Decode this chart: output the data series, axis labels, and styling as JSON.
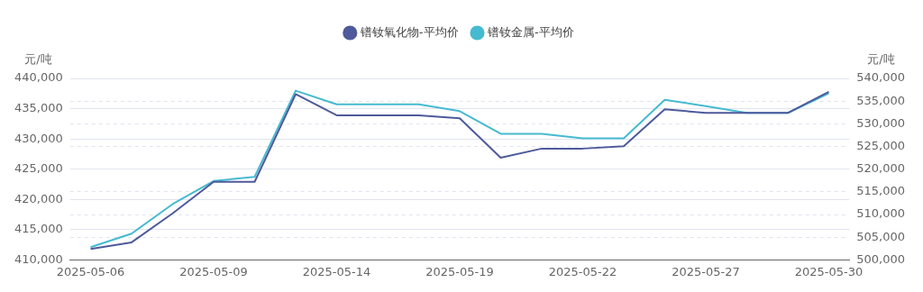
{
  "chart_data": {
    "type": "line",
    "ylabel": "元/吨",
    "y2label": "元/吨",
    "categories": [
      "2025-05-06",
      null,
      null,
      "2025-05-09",
      null,
      null,
      "2025-05-14",
      null,
      null,
      "2025-05-19",
      null,
      null,
      "2025-05-22",
      null,
      null,
      "2025-05-27",
      null,
      null,
      "2025-05-30"
    ],
    "series": [
      {
        "name": "镨钕氧化物-平均价",
        "color": "#4e5a9b",
        "values": [
          411800,
          412900,
          417700,
          422900,
          422900,
          437400,
          433900,
          433900,
          433900,
          433400,
          426900,
          428400,
          428400,
          428800,
          434900,
          434300,
          434300,
          434300,
          437800
        ]
      },
      {
        "name": "镨钕金属-平均价",
        "color": "#46bad0",
        "axis": "y2",
        "values": [
          502800,
          505800,
          512300,
          517400,
          518300,
          537300,
          534300,
          534300,
          534300,
          532800,
          527800,
          527800,
          526800,
          526800,
          535300,
          533900,
          532400,
          532400,
          536700
        ]
      }
    ],
    "ylim": [
      410000,
      440000
    ],
    "yticks": [
      {
        "value": 410000,
        "label": "410,000"
      },
      {
        "value": 415000,
        "label": "415,000"
      },
      {
        "value": 420000,
        "label": "420,000"
      },
      {
        "value": 425000,
        "label": "425,000"
      },
      {
        "value": 430000,
        "label": "430,000"
      },
      {
        "value": 435000,
        "label": "435,000"
      },
      {
        "value": 440000,
        "label": "440,000"
      }
    ],
    "y2lim": [
      500000,
      540000
    ],
    "y2ticks": [
      {
        "value": 500000,
        "label": "500,000"
      },
      {
        "value": 505000,
        "label": "505,000"
      },
      {
        "value": 510000,
        "label": "510,000"
      },
      {
        "value": 515000,
        "label": "515,000"
      },
      {
        "value": 520000,
        "label": "520,000"
      },
      {
        "value": 525000,
        "label": "525,000"
      },
      {
        "value": 530000,
        "label": "530,000"
      },
      {
        "value": 535000,
        "label": "535,000"
      },
      {
        "value": 540000,
        "label": "540,000"
      }
    ],
    "grid": true,
    "legend": "top",
    "marker": "none",
    "line_style": "solid"
  }
}
